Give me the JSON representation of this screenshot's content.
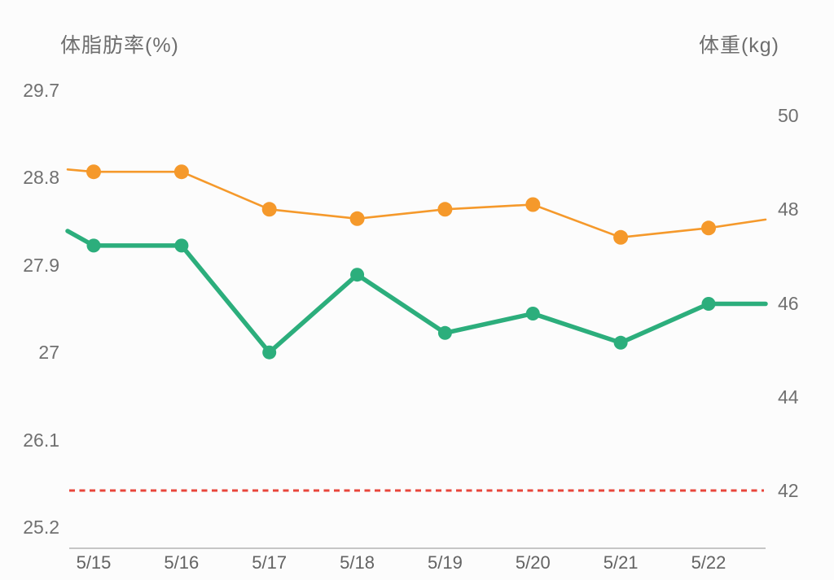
{
  "chart_data": {
    "type": "line",
    "title": "",
    "categories": [
      "5/15",
      "5/16",
      "5/17",
      "5/18",
      "5/19",
      "5/20",
      "5/21",
      "5/22"
    ],
    "series": [
      {
        "key": "weight",
        "name": "体重",
        "unit": "kg",
        "axis": "right",
        "color": "#F5992B",
        "values": [
          48.8,
          48.8,
          48.0,
          47.8,
          48.0,
          48.1,
          47.4,
          47.6
        ],
        "edge_left": 48.85,
        "edge_right": 47.78
      },
      {
        "key": "body-fat",
        "name": "体脂肪率",
        "unit": "%",
        "axis": "left",
        "color": "#2CAE7C",
        "values": [
          28.1,
          28.1,
          27.0,
          27.8,
          27.2,
          27.4,
          27.1,
          27.5
        ],
        "edge_left": 28.25,
        "edge_right": 27.5
      }
    ],
    "goal_line": {
      "axis": "right",
      "value": 42,
      "color": "#E8463B",
      "style": "dashed"
    },
    "left_axis": {
      "title": "体脂肪率(%)",
      "ticks": [
        29.7,
        28.8,
        27.9,
        27,
        26.1,
        25.2
      ],
      "range": [
        25.2,
        29.7
      ]
    },
    "right_axis": {
      "title": "体重(kg)",
      "ticks": [
        50,
        48,
        46,
        44,
        42
      ],
      "range": [
        42,
        50
      ]
    },
    "x_axis": {
      "labels": [
        "5/15",
        "5/16",
        "5/17",
        "5/18",
        "5/19",
        "5/20",
        "5/21",
        "5/22"
      ]
    },
    "grid": false,
    "legend": "none",
    "colors": {
      "axis_line": "#C6C6C6",
      "tick_text": "#707070",
      "title_text": "#6E6E6E",
      "background": "#FCFCFC"
    }
  }
}
